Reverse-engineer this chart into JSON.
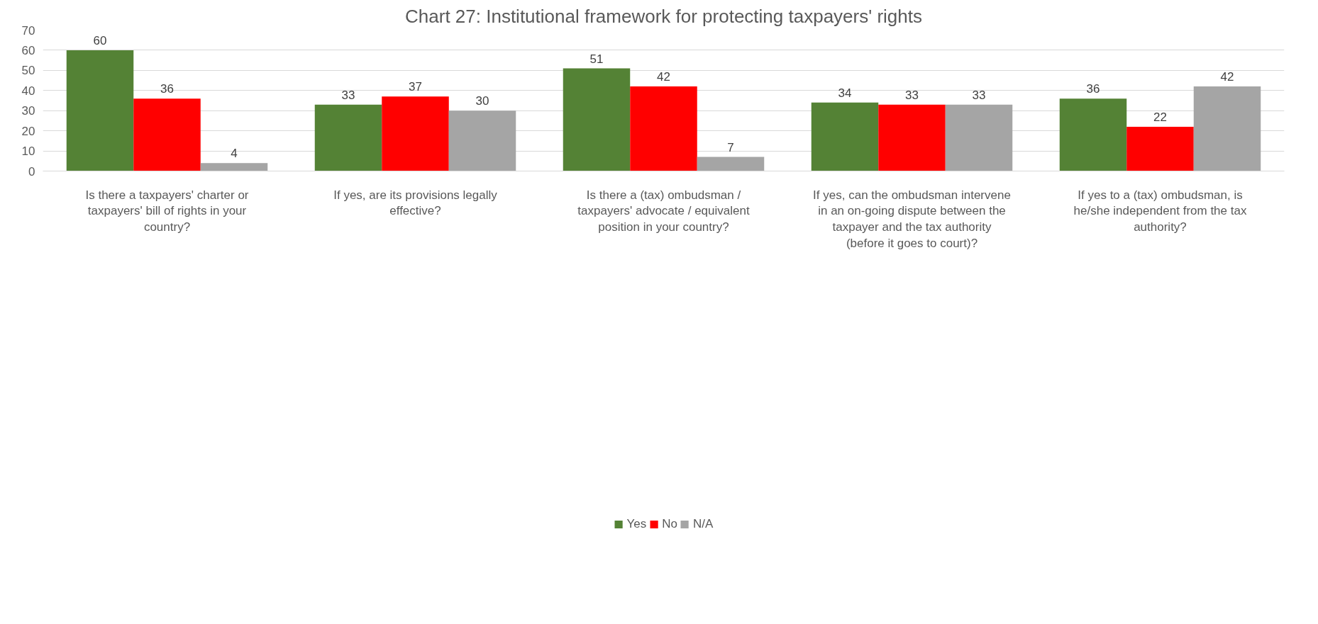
{
  "chart_data": {
    "type": "bar",
    "title": "Chart 27: Institutional framework for protecting taxpayers' rights",
    "categories": [
      "Is there a taxpayers' charter or taxpayers' bill of rights in your country?",
      "If yes, are its provisions legally effective?",
      "Is there a (tax) ombudsman / taxpayers' advocate / equivalent position in your country?",
      "If yes, can the ombudsman intervene in an on-going dispute between the taxpayer and the tax authority (before it goes to court)?",
      "If yes to a (tax) ombudsman, is he/she independent from the tax authority?"
    ],
    "series": [
      {
        "name": "Yes",
        "color": "#548235",
        "values": [
          60,
          33,
          51,
          34,
          36
        ]
      },
      {
        "name": "No",
        "color": "#ff0000",
        "values": [
          36,
          37,
          42,
          33,
          22
        ]
      },
      {
        "name": "N/A",
        "color": "#a5a5a5",
        "values": [
          4,
          30,
          7,
          33,
          42
        ]
      }
    ],
    "ylim": [
      0,
      70
    ],
    "yticks": [
      0,
      10,
      20,
      30,
      40,
      50,
      60,
      70
    ],
    "grid": "y",
    "legend": "bottom",
    "data_labels": true
  }
}
